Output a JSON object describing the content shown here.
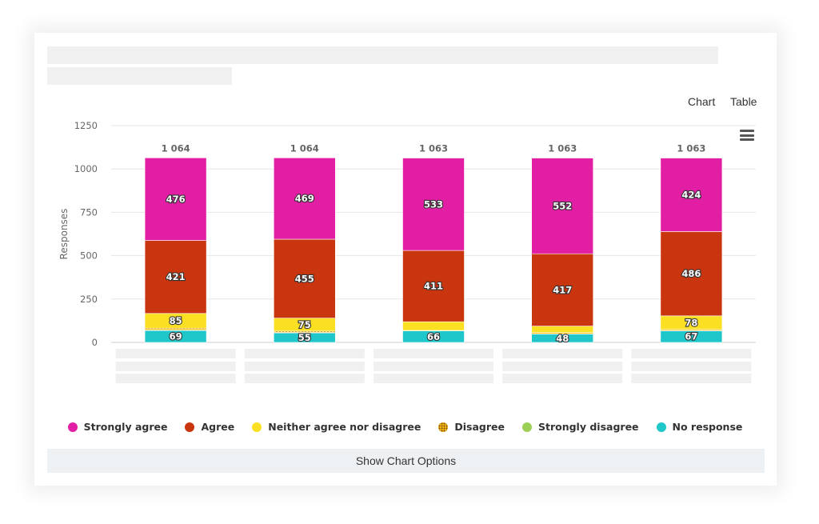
{
  "view_toggle": {
    "chart_label": "Chart",
    "table_label": "Table"
  },
  "menu": {
    "icon": "hamburger-menu-icon"
  },
  "legend": [
    {
      "label": "Strongly agree",
      "color": "#e21ea4",
      "pattern": "solid"
    },
    {
      "label": "Agree",
      "color": "#c8350e",
      "pattern": "solid"
    },
    {
      "label": "Neither agree nor disagree",
      "color": "#fbdf22",
      "pattern": "solid"
    },
    {
      "label": "Disagree",
      "color": "#f2a20f",
      "pattern": "dotted"
    },
    {
      "label": "Strongly disagree",
      "color": "#9bcf56",
      "pattern": "solid"
    },
    {
      "label": "No response",
      "color": "#1fc7cb",
      "pattern": "solid"
    }
  ],
  "options_button": {
    "label": "Show Chart Options"
  },
  "chart_data": {
    "type": "bar",
    "stacked": true,
    "categories": [
      "",
      "",
      "",
      "",
      ""
    ],
    "ylabel": "Responses",
    "ylim": [
      0,
      1250
    ],
    "yticks": [
      "0",
      "250",
      "500",
      "750",
      "1000",
      "1250"
    ],
    "yticks_values": [
      0,
      250,
      500,
      750,
      1000,
      1250
    ],
    "grid": true,
    "legend_position": "bottom",
    "totals": [
      "1 064",
      "1 064",
      "1 063",
      "1 063",
      "1 063"
    ],
    "totals_values": [
      1064,
      1064,
      1063,
      1063,
      1063
    ],
    "series": [
      {
        "name": "No response",
        "color": "#1fc7cb",
        "values": [
          69,
          55,
          66,
          48,
          67
        ],
        "show_labels": [
          true,
          true,
          true,
          true,
          true
        ]
      },
      {
        "name": "Strongly disagree",
        "color": "#9bcf56",
        "values": [
          2,
          2,
          1,
          1,
          1
        ],
        "show_labels": [
          false,
          false,
          false,
          false,
          false
        ]
      },
      {
        "name": "Disagree",
        "color": "#f2a20f",
        "pattern": "dotted",
        "values": [
          11,
          8,
          2,
          8,
          7
        ],
        "show_labels": [
          false,
          false,
          false,
          false,
          false
        ]
      },
      {
        "name": "Neither agree nor disagree",
        "color": "#fbdf22",
        "values": [
          85,
          75,
          50,
          37,
          78
        ],
        "show_labels": [
          true,
          true,
          false,
          false,
          true
        ]
      },
      {
        "name": "Agree",
        "color": "#c8350e",
        "values": [
          421,
          455,
          411,
          417,
          486
        ],
        "show_labels": [
          true,
          true,
          true,
          true,
          true
        ]
      },
      {
        "name": "Strongly agree",
        "color": "#e21ea4",
        "values": [
          476,
          469,
          533,
          552,
          424
        ],
        "show_labels": [
          true,
          true,
          true,
          true,
          true
        ]
      }
    ]
  }
}
